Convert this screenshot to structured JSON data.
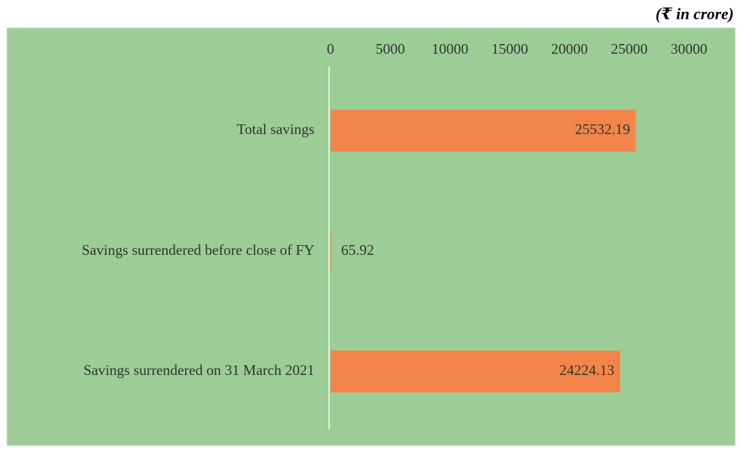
{
  "chart_data": {
    "type": "hbar",
    "subtitle": "(₹ in crore)",
    "categories": [
      "Total savings",
      "Savings surrendered before close of FY",
      "Savings surrendered on 31 March 2021"
    ],
    "values": [
      25532.19,
      65.92,
      24224.13
    ],
    "color": "#f4854a",
    "xlim": [
      0,
      30000
    ],
    "xticks": [
      0,
      5000,
      10000,
      15000,
      20000,
      25000,
      30000
    ],
    "grid": false
  }
}
